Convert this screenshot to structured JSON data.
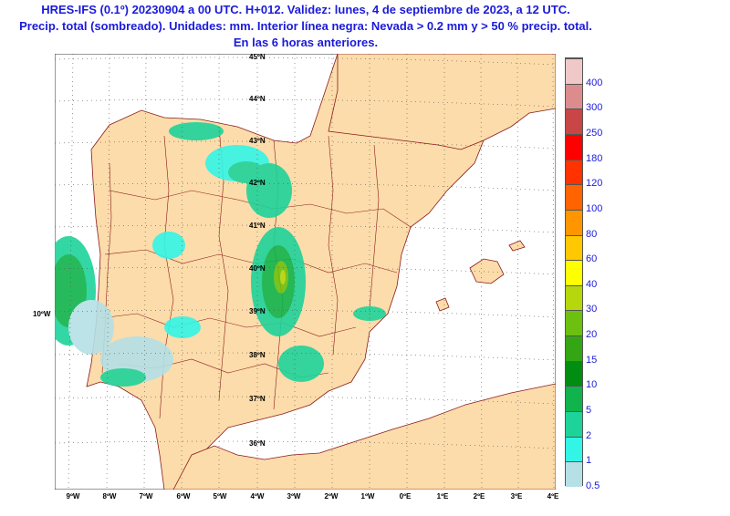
{
  "title": {
    "line1": "HRES-IFS (0.1º) 20230904 a 00 UTC. H+012. Validez: lunes, 4 de septiembre de 2023, a 12 UTC.",
    "line2": "Precip. total (sombreado). Unidades: mm. Interior línea negra: Nevada > 0.2 mm y > 50 % precip. total.",
    "line3": "En las 6 horas anteriores."
  },
  "map": {
    "longitude_labels": [
      "9ºW",
      "8ºW",
      "7ºW",
      "6ºW",
      "5ºW",
      "4ºW",
      "3ºW",
      "2ºW",
      "1ºW",
      "0ºE",
      "1ºE",
      "2ºE",
      "3ºE",
      "4ºE"
    ],
    "latitude_labels": [
      "45ºN",
      "44ºN",
      "43ºN",
      "42ºN",
      "41ºN",
      "40ºN",
      "39ºN",
      "38ºN",
      "37ºN",
      "36ºN"
    ],
    "side_label": "10ºW",
    "colors": {
      "land": "#fcdcaa",
      "sea": "#ffffff",
      "border": "#8b1a1a",
      "grid": "#555555"
    }
  },
  "legend": {
    "levels": [
      "0.5",
      "1",
      "2",
      "5",
      "10",
      "15",
      "20",
      "30",
      "40",
      "60",
      "80",
      "100",
      "120",
      "180",
      "250",
      "300",
      "400"
    ],
    "colors": [
      "#b4e0e6",
      "#33f5e6",
      "#1ed39a",
      "#10b34c",
      "#008d12",
      "#34a614",
      "#6dc010",
      "#b5d70c",
      "#ffff00",
      "#ffc800",
      "#ff9600",
      "#ff6400",
      "#ff3200",
      "#ff0000",
      "#c84646",
      "#dc8c8c",
      "#f0c8c8"
    ]
  }
}
